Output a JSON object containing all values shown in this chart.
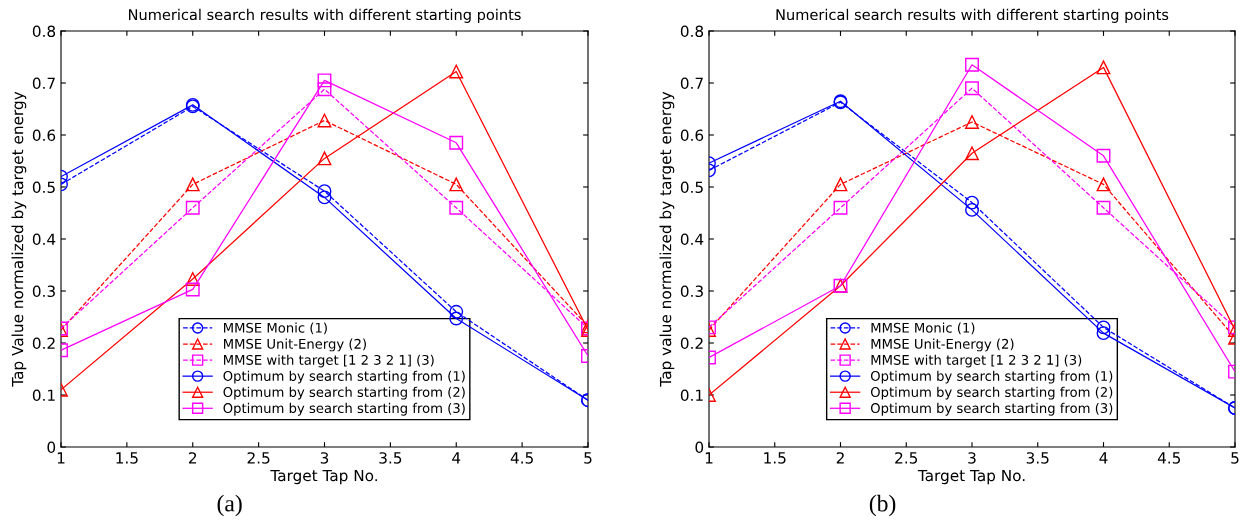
{
  "chart_data": [
    {
      "type": "line",
      "title": "Numerical search results with different starting points",
      "xlabel": "Target Tap No.",
      "ylabel": "Tap Value normalized by target energy",
      "x": [
        1,
        2,
        3,
        4,
        5
      ],
      "xlim": [
        1,
        5
      ],
      "xticks": [
        1,
        1.5,
        2,
        2.5,
        3,
        3.5,
        4,
        4.5,
        5
      ],
      "ylim": [
        0,
        0.8
      ],
      "yticks": [
        0,
        0.1,
        0.2,
        0.3,
        0.4,
        0.5,
        0.6,
        0.7,
        0.8
      ],
      "grid": false,
      "legend": "bottom",
      "annotations": [
        "(a)"
      ],
      "series": [
        {
          "name": "MMSE Monic (1)",
          "color": "#0000ff",
          "marker": "circle",
          "line_style": "dashed",
          "values": [
            0.505,
            0.655,
            0.492,
            0.26,
            0.09
          ]
        },
        {
          "name": "MMSE Unit-Energy (2)",
          "color": "#ff0000",
          "marker": "triangle",
          "line_style": "dashed",
          "values": [
            0.225,
            0.505,
            0.628,
            0.505,
            0.232
          ]
        },
        {
          "name": "MMSE with target [1 2 3 2 1] (3)",
          "color": "#ff00ff",
          "marker": "square",
          "line_style": "dashed",
          "values": [
            0.228,
            0.46,
            0.688,
            0.46,
            0.228
          ]
        },
        {
          "name": "Optimum by search starting from (1)",
          "color": "#0000ff",
          "marker": "circle",
          "line_style": "solid",
          "values": [
            0.52,
            0.658,
            0.48,
            0.247,
            0.09
          ]
        },
        {
          "name": "Optimum by search starting from (2)",
          "color": "#ff0000",
          "marker": "triangle",
          "line_style": "solid",
          "values": [
            0.11,
            0.323,
            0.555,
            0.722,
            0.225
          ]
        },
        {
          "name": "Optimum by search starting from (3)",
          "color": "#ff00ff",
          "marker": "square",
          "line_style": "solid",
          "values": [
            0.186,
            0.303,
            0.705,
            0.585,
            0.175
          ]
        }
      ]
    },
    {
      "type": "line",
      "title": "Numerical search results with different starting points",
      "xlabel": "Target Tap No.",
      "ylabel": "Tap value normalized by target energy",
      "x": [
        1,
        2,
        3,
        4,
        5
      ],
      "xlim": [
        1,
        5
      ],
      "xticks": [
        1,
        1.5,
        2,
        2.5,
        3,
        3.5,
        4,
        4.5,
        5
      ],
      "ylim": [
        0,
        0.8
      ],
      "yticks": [
        0,
        0.1,
        0.2,
        0.3,
        0.4,
        0.5,
        0.6,
        0.7,
        0.8
      ],
      "grid": false,
      "legend": "bottom",
      "annotations": [
        "(b)"
      ],
      "series": [
        {
          "name": "MMSE Monic (1)",
          "color": "#0000ff",
          "marker": "circle",
          "line_style": "dashed",
          "values": [
            0.532,
            0.663,
            0.47,
            0.23,
            0.075
          ]
        },
        {
          "name": "MMSE Unit-Energy (2)",
          "color": "#ff0000",
          "marker": "triangle",
          "line_style": "dashed",
          "values": [
            0.225,
            0.505,
            0.625,
            0.505,
            0.21
          ]
        },
        {
          "name": "MMSE with target [1 2 3 2 1] (3)",
          "color": "#ff00ff",
          "marker": "square",
          "line_style": "dashed",
          "values": [
            0.23,
            0.46,
            0.69,
            0.46,
            0.23
          ]
        },
        {
          "name": "Optimum by search starting from (1)",
          "color": "#0000ff",
          "marker": "circle",
          "line_style": "solid",
          "values": [
            0.546,
            0.665,
            0.456,
            0.219,
            0.075
          ]
        },
        {
          "name": "Optimum by search starting from (2)",
          "color": "#ff0000",
          "marker": "triangle",
          "line_style": "solid",
          "values": [
            0.1,
            0.31,
            0.565,
            0.73,
            0.225
          ]
        },
        {
          "name": "Optimum by search starting from (3)",
          "color": "#ff00ff",
          "marker": "square",
          "line_style": "solid",
          "values": [
            0.172,
            0.31,
            0.735,
            0.56,
            0.145
          ]
        }
      ]
    }
  ]
}
